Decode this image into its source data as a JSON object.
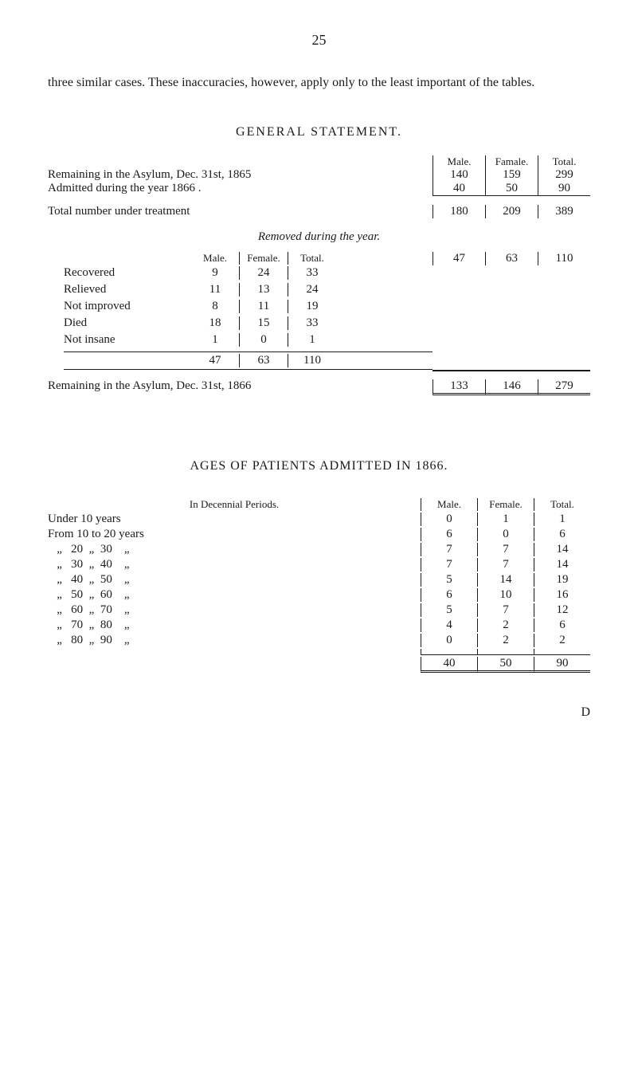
{
  "page_number": "25",
  "intro_text": "three similar cases. These inaccuracies, however, apply only to the least important of the tables.",
  "general_statement": {
    "title": "GENERAL STATEMENT.",
    "col_headers": [
      "Male.",
      "Famale.",
      "Total."
    ],
    "rows": [
      {
        "label": "Remaining in the Asylum, Dec. 31st, 1865",
        "male": "140",
        "female": "159",
        "total": "299"
      },
      {
        "label": "Admitted during the year 1866     .",
        "male": "40",
        "female": "50",
        "total": "90"
      }
    ],
    "total_row": {
      "label": "Total number under treatment",
      "male": "180",
      "female": "209",
      "total": "389"
    },
    "removed_heading": "Removed during the year.",
    "sub_headers": [
      "Male.",
      "Female.",
      "Total."
    ],
    "sub_rows": [
      {
        "label": "Recovered",
        "male": "9",
        "female": "24",
        "total": "33"
      },
      {
        "label": "Relieved",
        "male": "11",
        "female": "13",
        "total": "24"
      },
      {
        "label": "Not improved",
        "male": "8",
        "female": "11",
        "total": "19"
      },
      {
        "label": "Died",
        "male": "18",
        "female": "15",
        "total": "33"
      },
      {
        "label": "Not insane",
        "male": "1",
        "female": "0",
        "total": "1"
      }
    ],
    "sub_total": {
      "male": "47",
      "female": "63",
      "total": "110"
    },
    "outer_total": {
      "male": "47",
      "female": "63",
      "total": "110"
    },
    "remaining_row": {
      "label": "Remaining in the Asylum, Dec. 31st, 1866",
      "male": "133",
      "female": "146",
      "total": "279"
    }
  },
  "ages": {
    "title": "AGES OF PATIENTS ADMITTED IN 1866.",
    "period_heading": "In Decennial Periods.",
    "col_headers": [
      "Male.",
      "Female.",
      "Total."
    ],
    "rows": [
      {
        "label": "Under 10 years",
        "male": "0",
        "female": "1",
        "total": "1"
      },
      {
        "label": "From 10 to 20 years",
        "male": "6",
        "female": "0",
        "total": "6"
      },
      {
        "label": "   „   20  „  30    „",
        "male": "7",
        "female": "7",
        "total": "14"
      },
      {
        "label": "   „   30  „  40    „",
        "male": "7",
        "female": "7",
        "total": "14"
      },
      {
        "label": "   „   40  „  50    „",
        "male": "5",
        "female": "14",
        "total": "19"
      },
      {
        "label": "   „   50  „  60    „",
        "male": "6",
        "female": "10",
        "total": "16"
      },
      {
        "label": "   „   60  „  70    „",
        "male": "5",
        "female": "7",
        "total": "12"
      },
      {
        "label": "   „   70  „  80    „",
        "male": "4",
        "female": "2",
        "total": "6"
      },
      {
        "label": "   „   80  „  90    „",
        "male": "0",
        "female": "2",
        "total": "2"
      }
    ],
    "total": {
      "male": "40",
      "female": "50",
      "total": "90"
    }
  },
  "footer": "D"
}
